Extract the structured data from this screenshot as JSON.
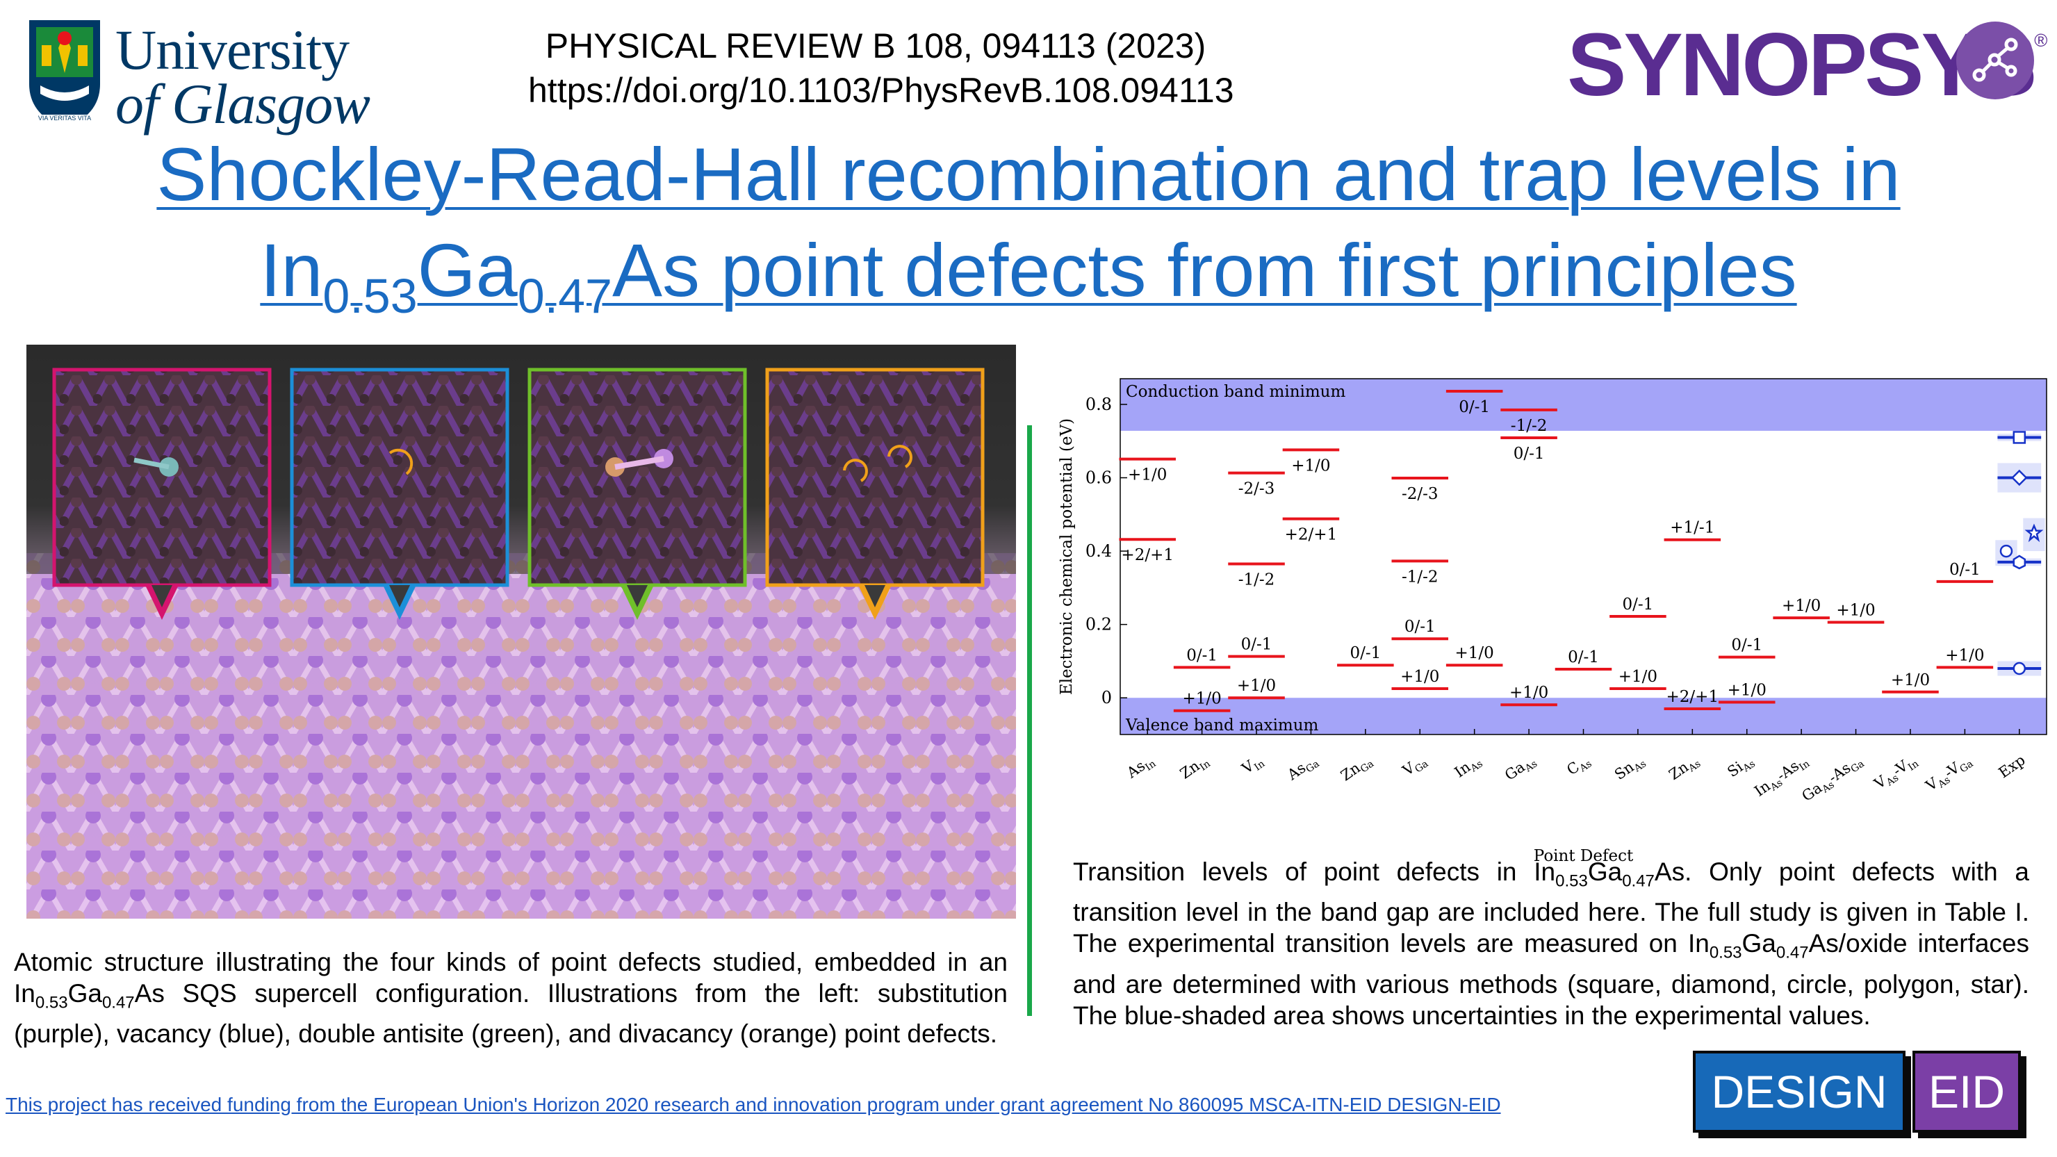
{
  "header": {
    "university_line1": "University",
    "university_line2": "of Glasgow",
    "crest_motto": "VIA VERITAS VITA",
    "journal": "PHYSICAL REVIEW B 108, 094113 (2023)",
    "doi": "https://doi.org/10.1103/PhysRevB.108.094113",
    "company": "SYNOPSYS",
    "company_reg": "®"
  },
  "title": {
    "line1": "Shockley-Read-Hall recombination and trap levels in",
    "line2_pre_in": "In",
    "in_sub": "0.53",
    "ga": "Ga",
    "ga_sub": "0.47",
    "line2_rest": "As point defects from first principles"
  },
  "atomic": {
    "frame_colors": [
      "#d4146e",
      "#1c8fd8",
      "#6fbf2a",
      "#f0a01a"
    ],
    "caption": {
      "part1": "Atomic structure illustrating the four kinds of point defects studied, embedded in an In",
      "sub1": "0.53",
      "part2": "Ga",
      "sub2": "0.47",
      "part3": "As SQS supercell configuration. Illustrations from the left: substitution (purple), vacancy (blue), double antisite (green), and divacancy (orange) point defects."
    }
  },
  "chart_data": {
    "type": "transition-level diagram",
    "ylabel": "Electronic chemical potential (eV)",
    "xlabel": "Point Defect",
    "ylim": [
      -0.1,
      0.87
    ],
    "yticks": [
      "0",
      "0.2",
      "0.4",
      "0.6",
      "0.8"
    ],
    "ytick_values": [
      0,
      0.2,
      0.4,
      0.6,
      0.8
    ],
    "cbm_label": "Conduction band minimum",
    "vbm_label": "Valence band maximum",
    "cbm": 0.728,
    "vbm": 0.0,
    "categories": [
      "As_In",
      "Zn_In",
      "V_In",
      "As_Ga",
      "Zn_Ga",
      "V_Ga",
      "In_As",
      "Ga_As",
      "C_As",
      "Sn_As",
      "Zn_As",
      "Si_As",
      "In_As-As_In",
      "Ga_As-As_Ga",
      "V_As-V_In",
      "V_As-V_Ga",
      "Exp"
    ],
    "category_labels": [
      {
        "base": "As",
        "sub": "In"
      },
      {
        "base": "Zn",
        "sub": "In"
      },
      {
        "base": "V",
        "sub": "In"
      },
      {
        "base": "As",
        "sub": "Ga"
      },
      {
        "base": "Zn",
        "sub": "Ga"
      },
      {
        "base": "V",
        "sub": "Ga"
      },
      {
        "base": "In",
        "sub": "As"
      },
      {
        "base": "Ga",
        "sub": "As"
      },
      {
        "base": "C",
        "sub": "As"
      },
      {
        "base": "Sn",
        "sub": "As"
      },
      {
        "base": "Zn",
        "sub": "As"
      },
      {
        "base": "Si",
        "sub": "As"
      },
      {
        "base": "In",
        "sub": "As",
        "mid": "-As",
        "sub2": "In"
      },
      {
        "base": "Ga",
        "sub": "As",
        "mid": "-As",
        "sub2": "Ga"
      },
      {
        "base": "V",
        "sub": "As",
        "mid": "-V",
        "sub2": "In"
      },
      {
        "base": "V",
        "sub": "As",
        "mid": "-V",
        "sub2": "Ga"
      },
      {
        "base": "Exp"
      }
    ],
    "levels": [
      {
        "cat": 0,
        "value": 0.651,
        "label": "+1/0",
        "pos": "below"
      },
      {
        "cat": 0,
        "value": 0.432,
        "label": "+2/+1",
        "pos": "below"
      },
      {
        "cat": 1,
        "value": 0.083,
        "label": "0/-1",
        "pos": "above"
      },
      {
        "cat": 1,
        "value": -0.035,
        "label": "+1/0",
        "pos": "above"
      },
      {
        "cat": 2,
        "value": 0.613,
        "label": "-2/-3",
        "pos": "below"
      },
      {
        "cat": 2,
        "value": 0.365,
        "label": "-1/-2",
        "pos": "below"
      },
      {
        "cat": 2,
        "value": 0.113,
        "label": "0/-1",
        "pos": "above"
      },
      {
        "cat": 2,
        "value": 0.0,
        "label": "+1/0",
        "pos": "above"
      },
      {
        "cat": 3,
        "value": 0.676,
        "label": "+1/0",
        "pos": "below"
      },
      {
        "cat": 3,
        "value": 0.488,
        "label": "+2/+1",
        "pos": "below"
      },
      {
        "cat": 4,
        "value": 0.089,
        "label": "0/-1",
        "pos": "above"
      },
      {
        "cat": 5,
        "value": 0.599,
        "label": "-2/-3",
        "pos": "below"
      },
      {
        "cat": 5,
        "value": 0.373,
        "label": "-1/-2",
        "pos": "below"
      },
      {
        "cat": 5,
        "value": 0.161,
        "label": "0/-1",
        "pos": "above"
      },
      {
        "cat": 5,
        "value": 0.025,
        "label": "+1/0",
        "pos": "above"
      },
      {
        "cat": 6,
        "value": 0.836,
        "label": "0/-1",
        "pos": "below"
      },
      {
        "cat": 6,
        "value": 0.089,
        "label": "+1/0",
        "pos": "above"
      },
      {
        "cat": 7,
        "value": 0.785,
        "label": "-1/-2",
        "pos": "below"
      },
      {
        "cat": 7,
        "value": 0.709,
        "label": "0/-1",
        "pos": "below"
      },
      {
        "cat": 7,
        "value": -0.019,
        "label": "+1/0",
        "pos": "above"
      },
      {
        "cat": 8,
        "value": 0.078,
        "label": "0/-1",
        "pos": "above"
      },
      {
        "cat": 9,
        "value": 0.222,
        "label": "0/-1",
        "pos": "above"
      },
      {
        "cat": 9,
        "value": 0.025,
        "label": "+1/0",
        "pos": "above"
      },
      {
        "cat": 10,
        "value": 0.431,
        "label": "+1/-1",
        "pos": "above"
      },
      {
        "cat": 10,
        "value": -0.03,
        "label": "+2/+1",
        "pos": "above"
      },
      {
        "cat": 11,
        "value": 0.111,
        "label": "0/-1",
        "pos": "above"
      },
      {
        "cat": 11,
        "value": -0.012,
        "label": "+1/0",
        "pos": "above"
      },
      {
        "cat": 12,
        "value": 0.218,
        "label": "+1/0",
        "pos": "above"
      },
      {
        "cat": 13,
        "value": 0.206,
        "label": "+1/0",
        "pos": "above"
      },
      {
        "cat": 14,
        "value": 0.016,
        "label": "+1/0",
        "pos": "above"
      },
      {
        "cat": 15,
        "value": 0.317,
        "label": "0/-1",
        "pos": "above"
      },
      {
        "cat": 15,
        "value": 0.083,
        "label": "+1/0",
        "pos": "above"
      }
    ],
    "experimental": [
      {
        "method": "square",
        "x_offset": 0,
        "value": 0.71,
        "err": [
          0.7,
          0.72
        ]
      },
      {
        "method": "diamond",
        "x_offset": 0,
        "value": 0.6,
        "err": [
          0.56,
          0.64
        ]
      },
      {
        "method": "circle",
        "x_offset": -0.4,
        "value": 0.4,
        "err": [
          0.36,
          0.43
        ]
      },
      {
        "method": "polygon",
        "x_offset": 0,
        "value": 0.37,
        "err": [
          0.36,
          0.38
        ]
      },
      {
        "method": "star",
        "x_offset": 0.45,
        "value": 0.45,
        "err": [
          0.4,
          0.49
        ]
      },
      {
        "method": "circle",
        "x_offset": 0,
        "value": 0.08,
        "err": [
          0.06,
          0.1
        ]
      }
    ],
    "colors": {
      "level": "#e8141c",
      "band": "#a4a4f8",
      "exp": "#1632c8",
      "exp_shade": "#dfe3fb"
    },
    "grid": false
  },
  "plot_caption": {
    "p1": "Transition levels of point defects in In",
    "s1": "0.53",
    "p2": "Ga",
    "s2": "0.47",
    "p3": "As. Only point defects with a transition level in the band gap are included here. The full study is given in Table I. The experimental transition levels are measured on In",
    "s3": "0.53",
    "p4": "Ga",
    "s4": "0.47",
    "p5": "As/oxide interfaces and are determined with various methods (square, diamond, circle, polygon, star). The blue-shaded area shows uncertainties in the experimental values."
  },
  "footer": {
    "funding": "This project has received funding from the European Union's Horizon 2020 research and innovation program under grant agreement No 860095 MSCA-ITN-EID DESIGN-EID",
    "design": "DESIGN",
    "eid": "EID"
  }
}
